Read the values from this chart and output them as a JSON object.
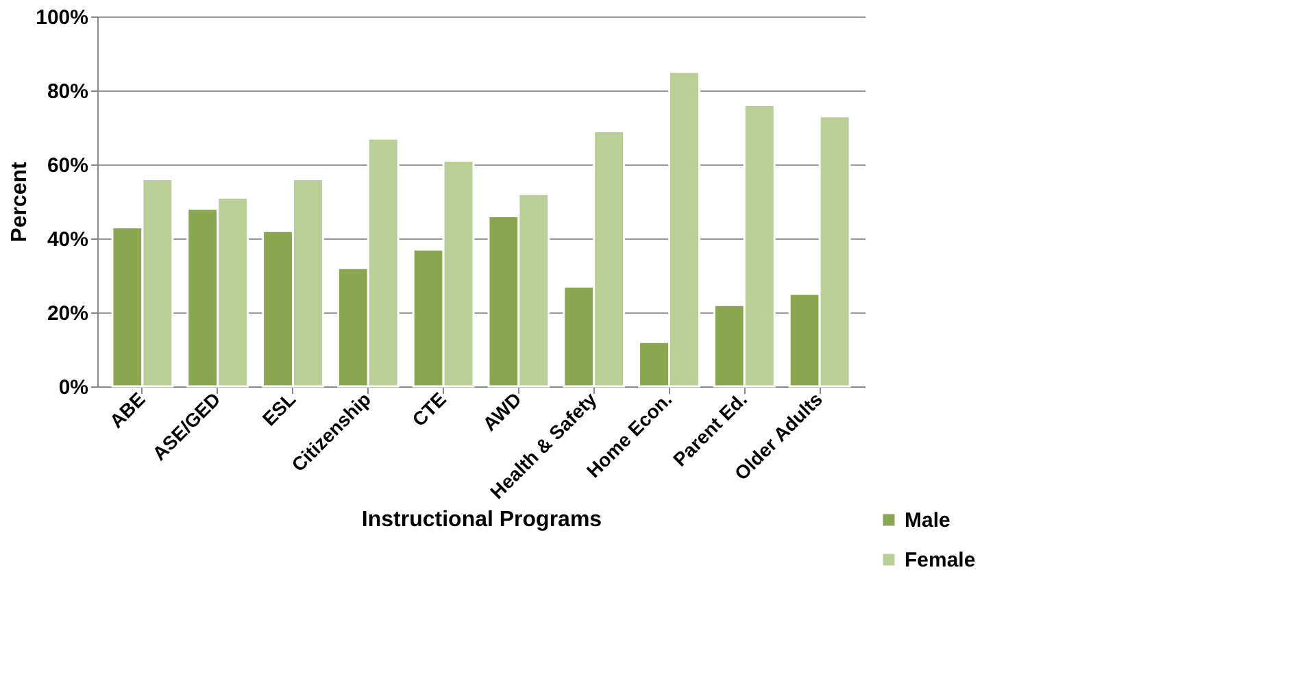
{
  "chart_data": {
    "type": "bar",
    "xlabel": "Instructional Programs",
    "ylabel": "Percent",
    "categories": [
      "ABE",
      "ASE/GED",
      "ESL",
      "Citizenship",
      "CTE",
      "AWD",
      "Health & Safety",
      "Home Econ.",
      "Parent Ed.",
      "Older Adults"
    ],
    "series": [
      {
        "name": "Male",
        "color": "#8aa64e",
        "values": [
          43,
          48,
          42,
          32,
          37,
          46,
          27,
          12,
          22,
          25
        ]
      },
      {
        "name": "Female",
        "color": "#bacf95",
        "values": [
          56,
          51,
          56,
          67,
          61,
          52,
          69,
          85,
          76,
          73
        ]
      }
    ],
    "ylim": [
      0,
      100
    ],
    "yticks": [
      {
        "value": 0,
        "label": "0%"
      },
      {
        "value": 20,
        "label": "20%"
      },
      {
        "value": 40,
        "label": "40%"
      },
      {
        "value": 60,
        "label": "60%"
      },
      {
        "value": 80,
        "label": "80%"
      },
      {
        "value": 100,
        "label": "100%"
      }
    ],
    "grid": "y",
    "legend": "bottom right"
  }
}
